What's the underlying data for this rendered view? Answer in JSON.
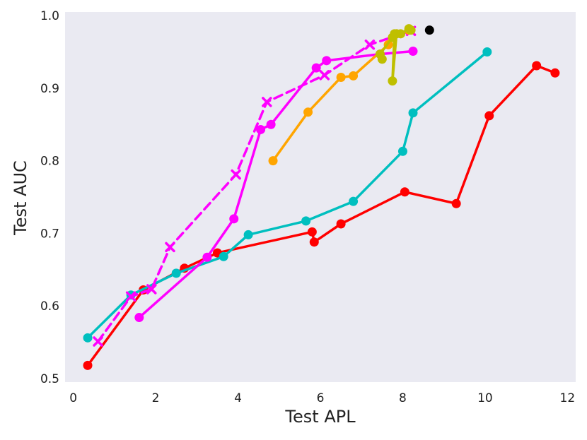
{
  "chart_data": {
    "type": "line",
    "title": "",
    "xlabel": "Test APL",
    "ylabel": "Test AUC",
    "xlim": [
      -0.2,
      12.2
    ],
    "ylim": [
      0.495,
      1.005
    ],
    "grid": false,
    "legend": "none",
    "background": "#EAEAF2",
    "xticks": [
      0,
      2,
      4,
      6,
      8,
      10,
      12
    ],
    "yticks": [
      0.5,
      0.6,
      0.7,
      0.8,
      0.9,
      1.0
    ],
    "xtick_labels": [
      "0",
      "2",
      "4",
      "6",
      "8",
      "10",
      "12"
    ],
    "ytick_labels": [
      "0.5",
      "0.6",
      "0.7",
      "0.8",
      "0.9",
      "1.0"
    ],
    "series": [
      {
        "color": "#FF0000",
        "dash": "solid",
        "marker": "circle",
        "x": [
          0.35,
          1.7,
          2.7,
          3.5,
          5.8,
          5.85,
          6.5,
          8.05,
          9.3,
          10.1,
          11.25,
          11.7
        ],
        "y": [
          0.518,
          0.622,
          0.652,
          0.673,
          0.702,
          0.688,
          0.713,
          0.757,
          0.741,
          0.862,
          0.931,
          0.921
        ]
      },
      {
        "color": "#00BFBF",
        "dash": "solid",
        "marker": "circle",
        "x": [
          0.35,
          1.4,
          2.5,
          3.65,
          4.25,
          5.65,
          6.8,
          8.0,
          8.25,
          10.05
        ],
        "y": [
          0.556,
          0.615,
          0.645,
          0.668,
          0.698,
          0.717,
          0.744,
          0.813,
          0.866,
          0.95
        ]
      },
      {
        "color": "#FF00FF",
        "dash": "solid",
        "marker": "circle",
        "x": [
          1.6,
          3.25,
          3.9,
          4.55,
          4.8,
          5.9,
          6.15,
          7.45,
          8.25
        ],
        "y": [
          0.584,
          0.667,
          0.72,
          0.843,
          0.85,
          0.928,
          0.938,
          0.947,
          0.951
        ]
      },
      {
        "color": "#FF00FF",
        "dash": "dashed",
        "marker": "x",
        "x": [
          0.6,
          1.4,
          1.9,
          2.35,
          3.95,
          4.7,
          6.1,
          7.2,
          8.2
        ],
        "y": [
          0.551,
          0.613,
          0.623,
          0.681,
          0.781,
          0.881,
          0.918,
          0.96,
          0.979
        ]
      },
      {
        "color": "#FFA500",
        "dash": "solid",
        "marker": "circle",
        "x": [
          4.85,
          5.7,
          6.5,
          6.8,
          7.65,
          7.85,
          8.15
        ],
        "y": [
          0.8,
          0.867,
          0.915,
          0.917,
          0.96,
          0.975,
          0.98
        ]
      },
      {
        "color": "#BFBF00",
        "dash": "solid",
        "marker": "circle",
        "x": [
          7.5,
          7.45,
          7.75,
          7.8,
          7.75,
          7.85,
          7.95,
          8.15,
          8.2
        ],
        "y": [
          0.94,
          0.947,
          0.97,
          0.975,
          0.91,
          0.975,
          0.975,
          0.982,
          0.98
        ]
      },
      {
        "color": "#000000",
        "dash": "none",
        "marker": "circle",
        "x": [
          8.65
        ],
        "y": [
          0.98
        ]
      }
    ]
  }
}
